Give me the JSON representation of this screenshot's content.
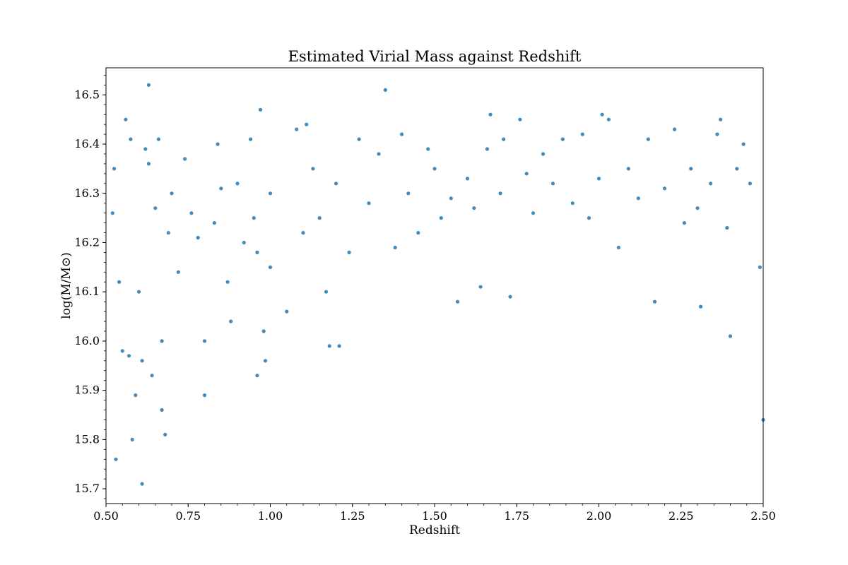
{
  "chart_data": {
    "type": "scatter",
    "title": "Estimated Virial Mass against Redshift",
    "xlabel": "Redshift",
    "ylabel": "log(M/M⊙)",
    "xlim": [
      0.5,
      2.5
    ],
    "ylim": [
      15.67,
      16.555
    ],
    "grid": false,
    "legend": "none",
    "xticks": [
      "0.50",
      "0.75",
      "1.00",
      "1.25",
      "1.50",
      "1.75",
      "2.00",
      "2.25",
      "2.50"
    ],
    "yticks": [
      "15.7",
      "15.8",
      "15.9",
      "16.0",
      "16.1",
      "16.2",
      "16.3",
      "16.4",
      "16.5"
    ],
    "point_color": "#1f77b4",
    "series": [
      {
        "x": [
          0.52,
          0.525,
          0.53,
          0.54,
          0.55,
          0.56,
          0.57,
          0.575,
          0.58,
          0.59,
          0.6,
          0.61,
          0.61,
          0.62,
          0.63,
          0.63,
          0.64,
          0.65,
          0.66,
          0.67,
          0.67,
          0.68,
          0.69,
          0.7,
          0.72,
          0.74,
          0.76,
          0.78,
          0.8,
          0.8,
          0.83,
          0.84,
          0.85,
          0.87,
          0.88,
          0.9,
          0.92,
          0.94,
          0.95,
          0.96,
          0.96,
          0.97,
          0.98,
          0.985,
          1.0,
          1.0,
          1.05,
          1.08,
          1.1,
          1.11,
          1.13,
          1.15,
          1.17,
          1.18,
          1.2,
          1.21,
          1.24,
          1.27,
          1.3,
          1.33,
          1.35,
          1.38,
          1.4,
          1.42,
          1.45,
          1.48,
          1.5,
          1.52,
          1.55,
          1.57,
          1.6,
          1.62,
          1.64,
          1.66,
          1.67,
          1.7,
          1.71,
          1.73,
          1.76,
          1.78,
          1.8,
          1.83,
          1.86,
          1.89,
          1.92,
          1.95,
          1.97,
          2.0,
          2.01,
          2.03,
          2.06,
          2.09,
          2.12,
          2.15,
          2.17,
          2.2,
          2.23,
          2.26,
          2.28,
          2.3,
          2.31,
          2.34,
          2.36,
          2.37,
          2.39,
          2.4,
          2.42,
          2.44,
          2.46,
          2.49,
          2.5
        ],
        "y": [
          16.26,
          16.35,
          15.76,
          16.12,
          15.98,
          16.45,
          15.97,
          16.41,
          15.8,
          15.89,
          16.1,
          15.96,
          15.71,
          16.39,
          16.52,
          16.36,
          15.93,
          16.27,
          16.41,
          15.86,
          16.0,
          15.81,
          16.22,
          16.3,
          16.14,
          16.37,
          16.26,
          16.21,
          16.0,
          15.89,
          16.24,
          16.4,
          16.31,
          16.12,
          16.04,
          16.32,
          16.2,
          16.41,
          16.25,
          16.18,
          15.93,
          16.47,
          16.02,
          15.96,
          16.3,
          16.15,
          16.06,
          16.43,
          16.22,
          16.44,
          16.35,
          16.25,
          16.1,
          15.99,
          16.32,
          15.99,
          16.18,
          16.41,
          16.28,
          16.38,
          16.51,
          16.19,
          16.42,
          16.3,
          16.22,
          16.39,
          16.35,
          16.25,
          16.29,
          16.08,
          16.33,
          16.27,
          16.11,
          16.39,
          16.46,
          16.3,
          16.41,
          16.09,
          16.45,
          16.34,
          16.26,
          16.38,
          16.32,
          16.41,
          16.28,
          16.42,
          16.25,
          16.33,
          16.46,
          16.45,
          16.19,
          16.35,
          16.29,
          16.41,
          16.08,
          16.31,
          16.43,
          16.24,
          16.35,
          16.27,
          16.07,
          16.32,
          16.42,
          16.45,
          16.23,
          16.01,
          16.35,
          16.4,
          16.32,
          16.15,
          15.84
        ]
      }
    ]
  }
}
